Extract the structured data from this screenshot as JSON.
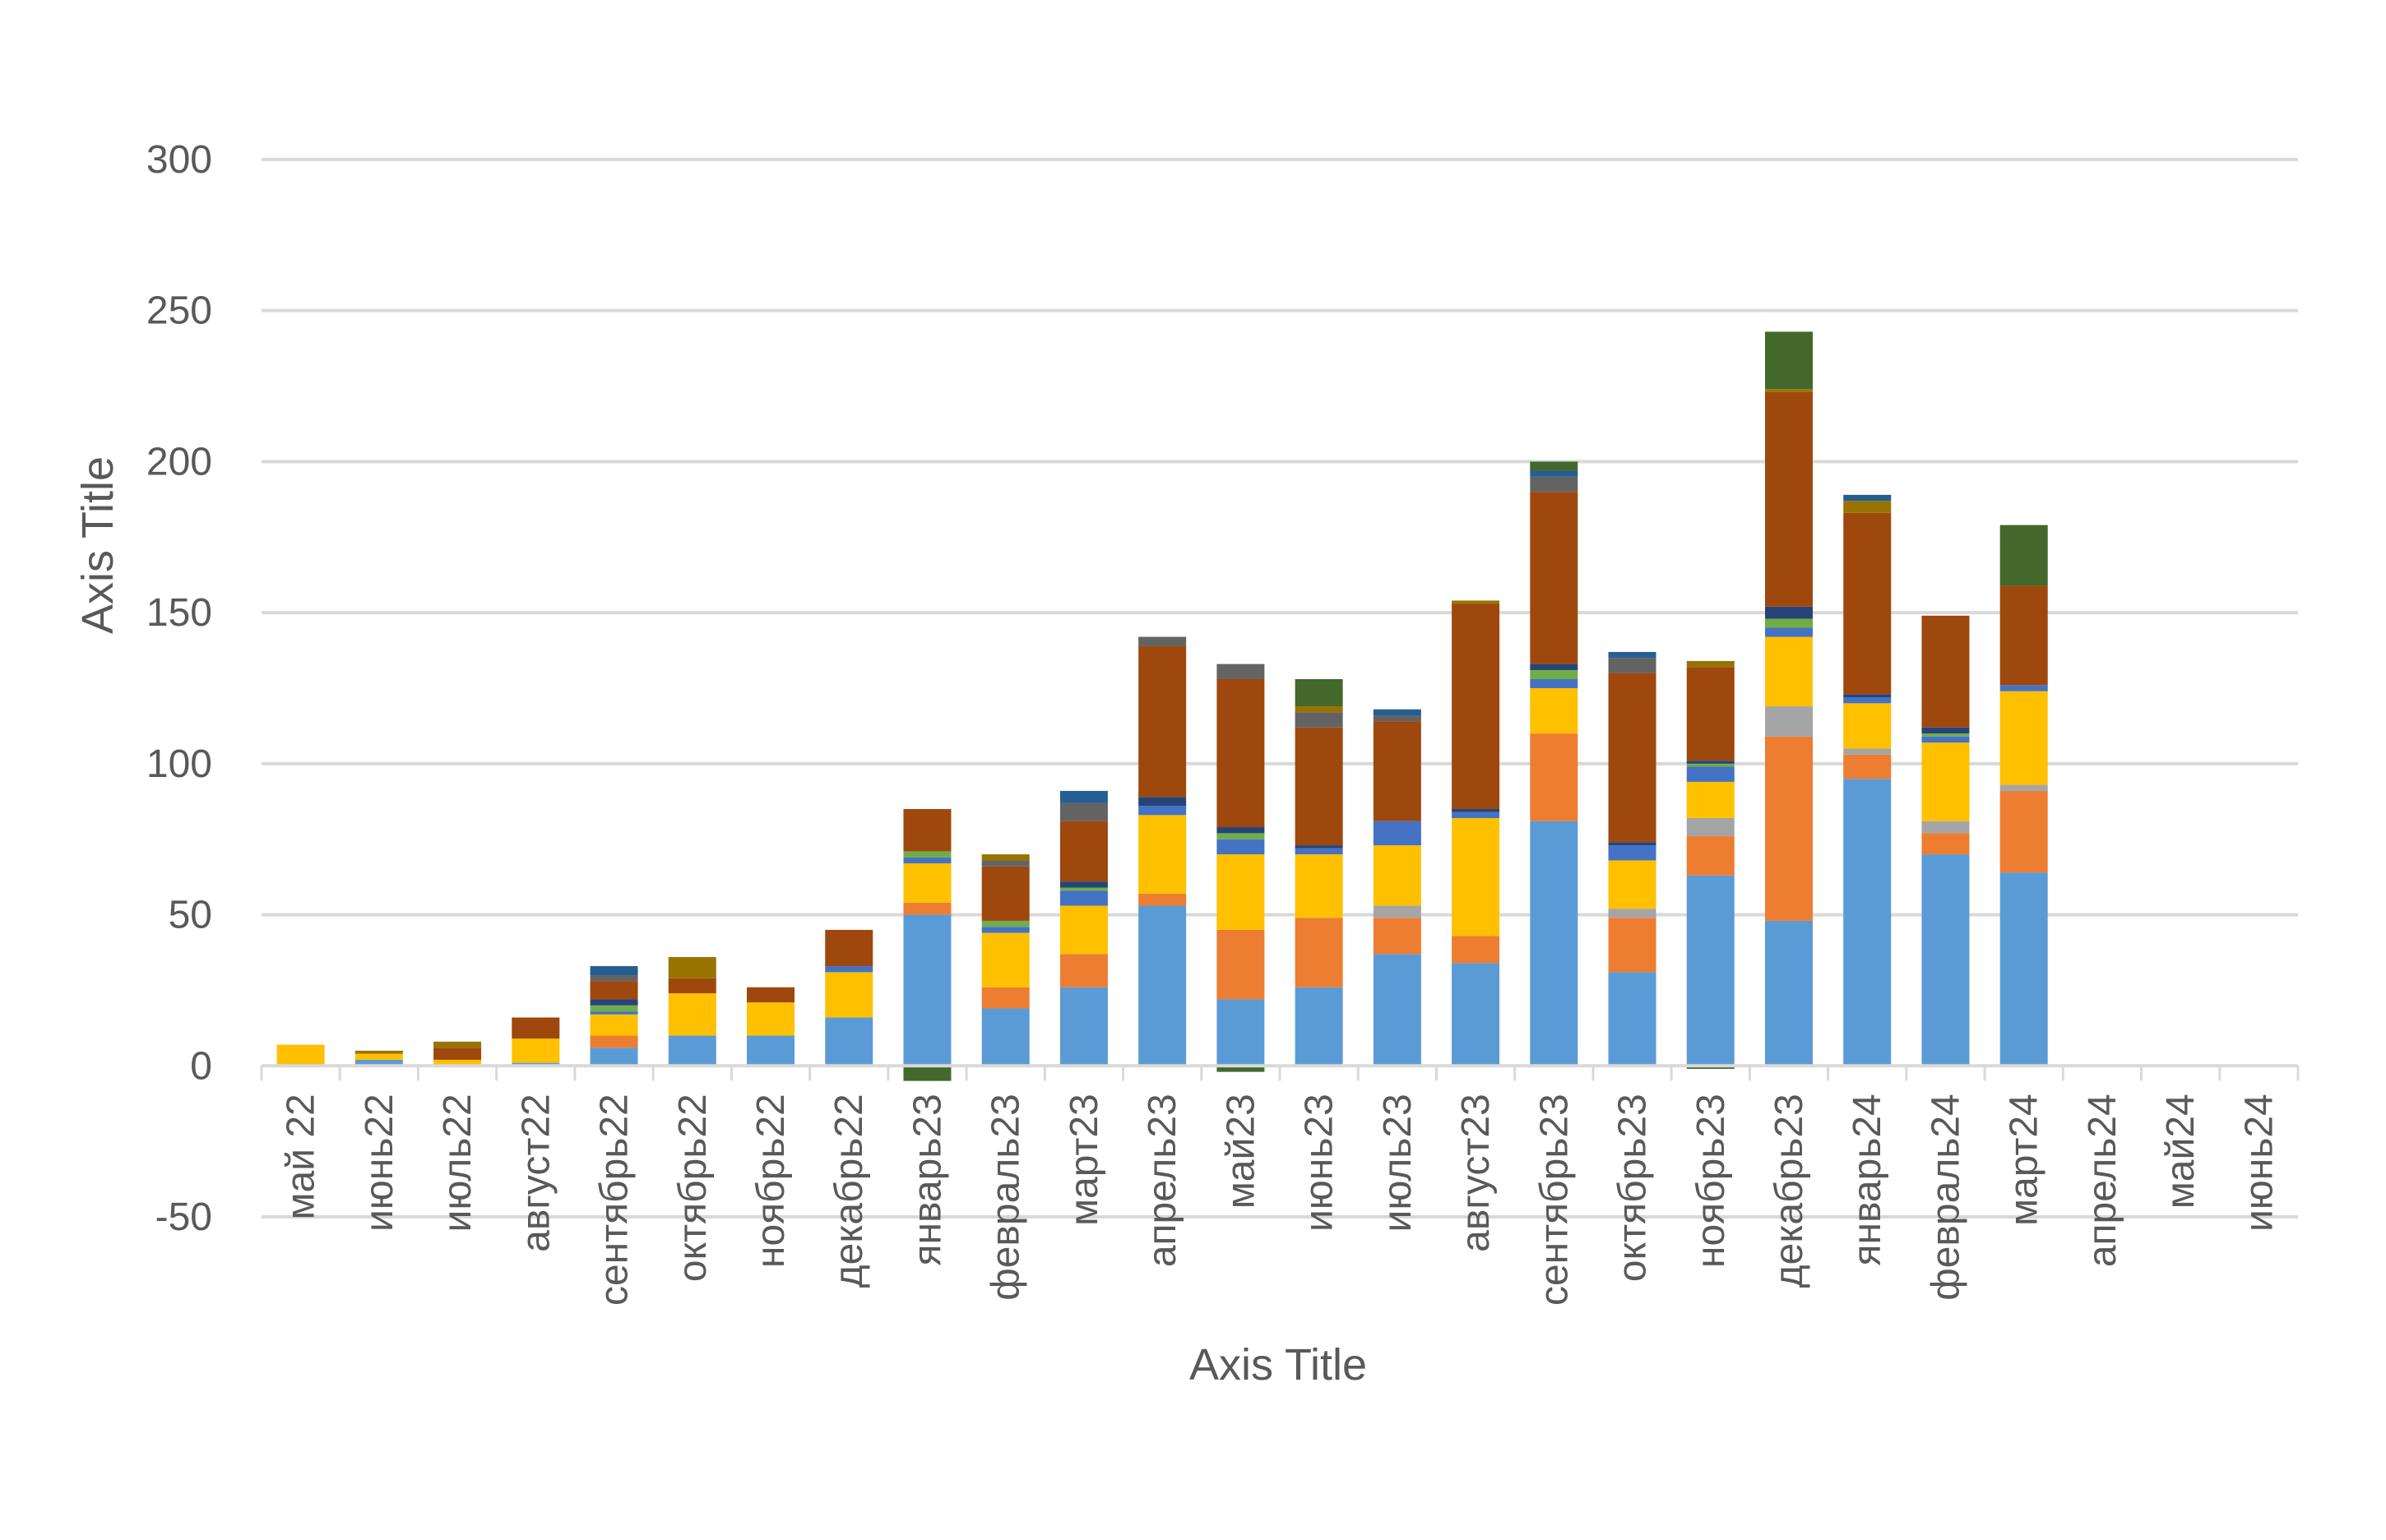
{
  "chart_data": {
    "type": "bar",
    "stacked": true,
    "xlabel": "Axis Title",
    "ylabel": "Axis Title",
    "ylim": [
      -50,
      300
    ],
    "yticks": [
      -50,
      0,
      50,
      100,
      150,
      200,
      250,
      300
    ],
    "grid": true,
    "legend": "none",
    "categories": [
      "май 22",
      "июнь22",
      "июль22",
      "август22",
      "сентябрь22",
      "октябрь22",
      "ноябрь22",
      "декабрь22",
      "январь23",
      "февраль23",
      "март23",
      "апрель23",
      "май23",
      "июнь23",
      "июль23",
      "август23",
      "сентябрь23",
      "октябрь23",
      "ноябрь23",
      "декабрь23",
      "январь24",
      "февраль24",
      "март24",
      "апрель24",
      "май24",
      "июнь24"
    ],
    "series": [
      {
        "color": "#5b9bd5",
        "values": [
          0,
          2,
          0,
          1,
          6,
          10,
          10,
          16,
          50,
          19,
          26,
          53,
          22,
          26,
          37,
          34,
          81,
          31,
          63,
          48,
          95,
          70,
          64,
          0,
          0,
          0
        ]
      },
      {
        "color": "#ed7d31",
        "values": [
          0,
          0,
          0,
          0,
          4,
          0,
          0,
          0,
          4,
          7,
          11,
          4,
          23,
          23,
          12,
          9,
          29,
          18,
          13,
          61,
          8,
          7,
          27,
          0,
          0,
          0
        ]
      },
      {
        "color": "#a5a5a5",
        "values": [
          0,
          0,
          0,
          0,
          0,
          0,
          0,
          0,
          0,
          0,
          0,
          0,
          0,
          0,
          4,
          0,
          0,
          3,
          6,
          10,
          2,
          4,
          2,
          0,
          0,
          0
        ]
      },
      {
        "color": "#ffc000",
        "values": [
          7,
          2,
          2,
          8,
          7,
          14,
          11,
          15,
          13,
          18,
          16,
          26,
          25,
          21,
          20,
          39,
          15,
          16,
          12,
          23,
          15,
          26,
          31,
          0,
          0,
          0
        ]
      },
      {
        "color": "#4472c4",
        "values": [
          0,
          0,
          0,
          0,
          1,
          0,
          0,
          2,
          2,
          2,
          5,
          3,
          5,
          2,
          8,
          2,
          3,
          5,
          5,
          3,
          2,
          2,
          2,
          0,
          0,
          0
        ]
      },
      {
        "color": "#70ad47",
        "values": [
          0,
          0,
          0,
          0,
          2,
          0,
          0,
          0,
          2,
          2,
          1,
          0,
          2,
          0,
          0,
          0,
          3,
          0,
          1,
          3,
          0,
          1,
          0,
          0,
          0,
          0
        ]
      },
      {
        "color": "#264478",
        "values": [
          0,
          0,
          0,
          0,
          2,
          0,
          0,
          0,
          0,
          0,
          2,
          3,
          2,
          1,
          0,
          1,
          2,
          1,
          1,
          4,
          1,
          2,
          0,
          0,
          0,
          0
        ]
      },
      {
        "color": "#9e480e",
        "values": [
          0,
          0,
          4,
          7,
          6,
          5,
          5,
          12,
          14,
          18,
          20,
          50,
          49,
          39,
          33,
          68,
          57,
          56,
          31,
          71,
          60,
          37,
          33,
          0,
          0,
          0
        ]
      },
      {
        "color": "#636363",
        "values": [
          0,
          0,
          0,
          0,
          2,
          0,
          0,
          0,
          0,
          2,
          6,
          3,
          5,
          5,
          2,
          0,
          5,
          5,
          0,
          0,
          0,
          0,
          0,
          0,
          0,
          0
        ]
      },
      {
        "color": "#997300",
        "values": [
          0,
          1,
          2,
          0,
          0,
          7,
          0,
          0,
          0,
          2,
          0,
          0,
          0,
          2,
          0,
          1,
          0,
          0,
          2,
          1,
          4,
          0,
          0,
          0,
          0,
          0
        ]
      },
      {
        "color": "#255e91",
        "values": [
          0,
          0,
          0,
          0,
          3,
          0,
          0,
          0,
          0,
          0,
          4,
          0,
          0,
          0,
          2,
          0,
          2,
          2,
          0,
          0,
          2,
          0,
          0,
          0,
          0,
          0
        ]
      },
      {
        "color": "#43682b",
        "values": [
          0,
          0,
          0,
          0,
          0,
          0,
          0,
          0,
          -5,
          0,
          0,
          0,
          -2,
          9,
          0,
          0,
          3,
          0,
          -1,
          19,
          0,
          0,
          20,
          0,
          0,
          0
        ]
      }
    ]
  }
}
